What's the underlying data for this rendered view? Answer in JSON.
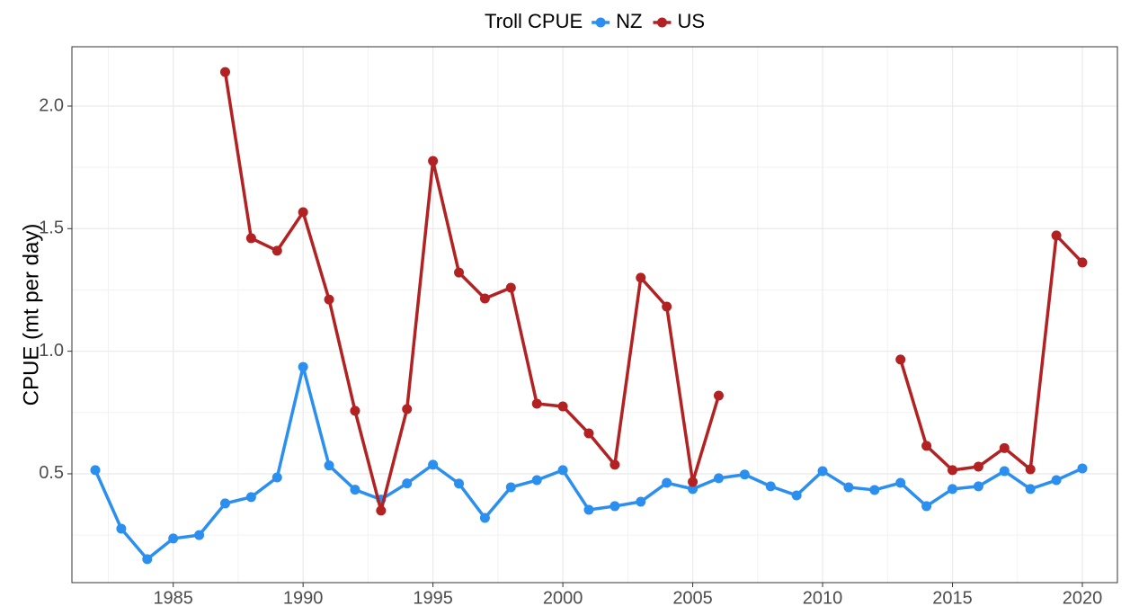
{
  "chart_data": {
    "type": "line",
    "ylabel": "CPUE (mt per day)",
    "legend_title": "Troll CPUE",
    "legend_position": "top",
    "grid": true,
    "x": [
      1982,
      1983,
      1984,
      1985,
      1986,
      1987,
      1988,
      1989,
      1990,
      1991,
      1992,
      1993,
      1994,
      1995,
      1996,
      1997,
      1998,
      1999,
      2000,
      2001,
      2002,
      2003,
      2004,
      2005,
      2006,
      2007,
      2008,
      2009,
      2010,
      2011,
      2012,
      2013,
      2014,
      2015,
      2016,
      2017,
      2018,
      2019,
      2020
    ],
    "series": [
      {
        "name": "NZ",
        "color": "#2b8ff0",
        "values": [
          0.515,
          0.276,
          0.152,
          0.236,
          0.25,
          0.379,
          0.405,
          0.485,
          0.936,
          0.534,
          0.435,
          0.395,
          0.461,
          0.537,
          0.46,
          0.32,
          0.445,
          0.474,
          0.515,
          0.353,
          0.368,
          0.386,
          0.463,
          0.438,
          0.482,
          0.497,
          0.449,
          0.412,
          0.511,
          0.445,
          0.434,
          0.463,
          0.368,
          0.438,
          0.449,
          0.511,
          0.438,
          0.474,
          0.522
        ]
      },
      {
        "name": "US",
        "color": "#b22222",
        "values": [
          null,
          null,
          null,
          null,
          null,
          2.139,
          1.461,
          1.41,
          1.567,
          1.211,
          0.757,
          0.35,
          0.764,
          1.776,
          1.321,
          1.215,
          1.259,
          0.786,
          0.775,
          0.665,
          0.537,
          1.3,
          1.182,
          0.467,
          0.819,
          null,
          null,
          null,
          null,
          null,
          null,
          0.966,
          0.614,
          0.515,
          0.529,
          0.605,
          0.518,
          1.472,
          1.362
        ]
      }
    ],
    "xlim": [
      1981.1,
      2021.35
    ],
    "xticks": [
      1985,
      1990,
      1995,
      2000,
      2005,
      2010,
      2015,
      2020
    ],
    "ylim": [
      0.056,
      2.242
    ],
    "yticks": [
      0.5,
      {
        "value": 1,
        "label": "1.0"
      },
      1.5,
      {
        "value": 2,
        "label": "2.0"
      }
    ]
  }
}
